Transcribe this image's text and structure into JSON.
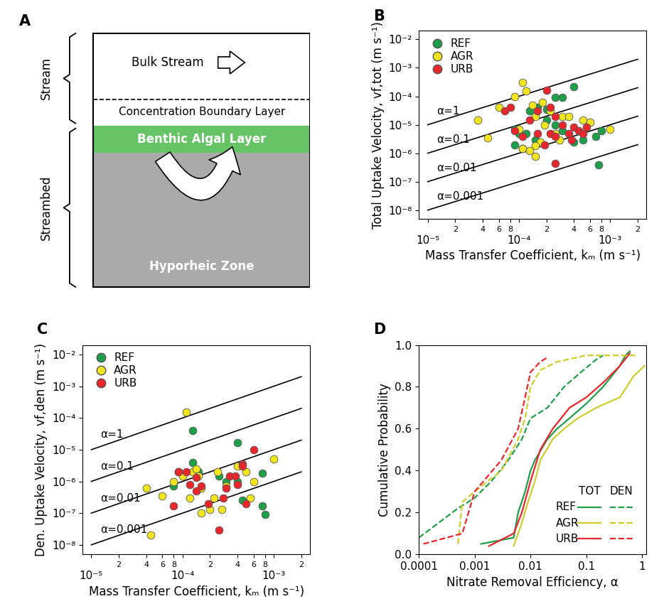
{
  "diagram": {
    "title": "A",
    "brackets": [
      {
        "label": "Stream"
      },
      {
        "label": "Streambed"
      }
    ],
    "layers": [
      {
        "label": "Bulk Stream"
      },
      {
        "label": "Concentration Boundary Layer"
      },
      {
        "label": "Benthic Algal Layer"
      },
      {
        "label": "Hyporheic Zone"
      }
    ]
  },
  "chart_data": [
    {
      "type": "scatter",
      "title": "B",
      "x_label": "Mass Transfer Coefficient, kₘ (m s⁻¹)",
      "y_label": "Total Uptake Velocity, vf,tot (m s⁻¹)",
      "log": true,
      "legend": "upper left",
      "xlim": [
        8e-06,
        0.0025
      ],
      "ylim": [
        5e-09,
        0.02
      ],
      "xticks": [
        {
          "value": 1e-05,
          "label": "10⁻⁵"
        },
        {
          "value": 2e-05,
          "label": "2"
        },
        {
          "value": 4e-05,
          "label": "4"
        },
        {
          "value": 6e-05,
          "label": "6"
        },
        {
          "value": 8e-05,
          "label": "8"
        },
        {
          "value": 0.0001,
          "label": "10⁻⁴"
        },
        {
          "value": 0.0002,
          "label": "2"
        },
        {
          "value": 0.0004,
          "label": "4"
        },
        {
          "value": 0.0006,
          "label": "6"
        },
        {
          "value": 0.0008,
          "label": "8"
        },
        {
          "value": 0.001,
          "label": "10⁻³"
        },
        {
          "value": 0.002,
          "label": "2"
        }
      ],
      "yticks": [
        {
          "value": 1e-08,
          "label": "10⁻⁸"
        },
        {
          "value": 1e-07,
          "label": "10⁻⁷"
        },
        {
          "value": 1e-06,
          "label": "10⁻⁶"
        },
        {
          "value": 1e-05,
          "label": "10⁻⁵"
        },
        {
          "value": 0.0001,
          "label": "10⁻⁴"
        },
        {
          "value": 0.001,
          "label": "10⁻³"
        },
        {
          "value": 0.01,
          "label": "10⁻²"
        }
      ],
      "reference_lines": [
        {
          "name": "α=1",
          "color": "#000000",
          "x": [
            1e-05,
            0.002
          ],
          "values": [
            1e-05,
            0.002
          ]
        },
        {
          "name": "α=0.1",
          "color": "#000000",
          "x": [
            1e-05,
            0.002
          ],
          "values": [
            1e-06,
            0.0002
          ]
        },
        {
          "name": "α=0.01",
          "color": "#000000",
          "x": [
            1e-05,
            0.002
          ],
          "values": [
            1e-07,
            2e-05
          ]
        },
        {
          "name": "α=0.001",
          "color": "#000000",
          "x": [
            1e-05,
            0.002
          ],
          "values": [
            1e-08,
            2e-06
          ]
        }
      ],
      "series": [
        {
          "name": "REF",
          "color": "#1e9e48",
          "marker": "circle",
          "x": [
            0.0004,
            0.0003,
            0.00025,
            0.0002,
            0.00016,
            0.00013,
            0.00012,
            9e-05,
            0.0001,
            9e-05,
            0.00011,
            0.0002,
            0.0003,
            0.0004,
            0.0005,
            0.0007,
            0.0008,
            0.00075,
            0.00025,
            0.00015
          ],
          "values": [
            0.00022,
            9e-05,
            9e-05,
            3.5e-05,
            4e-05,
            3e-05,
            5e-06,
            7e-06,
            5e-06,
            2e-06,
            1.5e-06,
            1.5e-05,
            6e-06,
            2.5e-06,
            3e-06,
            4e-06,
            6e-06,
            4e-07,
            1e-05,
            3e-06
          ]
        },
        {
          "name": "AGR",
          "color": "#f2e51d",
          "marker": "circle",
          "x": [
            0.00011,
            0.00012,
            9e-05,
            3.5e-05,
            6e-05,
            4.5e-05,
            0.00014,
            0.00015,
            0.00018,
            0.00022,
            0.0001,
            0.00011,
            0.00013,
            0.00015,
            0.00017,
            0.00019,
            0.00025,
            0.0003,
            0.00035,
            0.0005,
            0.0006,
            0.001,
            0.00028,
            0.00015
          ],
          "values": [
            0.0003,
            0.00015,
            0.0001,
            1.5e-05,
            4e-05,
            3.5e-06,
            5e-05,
            2e-05,
            6e-05,
            3e-05,
            7e-06,
            1.5e-06,
            1.2e-06,
            8e-07,
            2.5e-06,
            1e-05,
            5e-06,
            2e-05,
            2e-05,
            1.5e-05,
            1.2e-05,
            7e-06,
            3e-06,
            1.8e-06
          ]
        },
        {
          "name": "URB",
          "color": "#e8262b",
          "marker": "circle",
          "x": [
            7e-05,
            8e-05,
            0.0002,
            0.00016,
            0.00022,
            0.00025,
            0.00013,
            0.00016,
            0.00022,
            0.00025,
            0.00011,
            9e-05,
            0.00019,
            0.0003,
            0.00035,
            0.0004,
            0.00045,
            0.0005,
            0.00055,
            0.00025,
            0.00038
          ],
          "values": [
            3e-05,
            4e-05,
            0.00016,
            3e-05,
            4e-05,
            2e-05,
            1.5e-05,
            5e-06,
            5e-06,
            4e-06,
            4e-06,
            6e-06,
            2e-06,
            1e-05,
            5e-06,
            8e-06,
            6e-06,
            5e-06,
            8e-06,
            4.5e-07,
            3e-06
          ]
        }
      ]
    },
    {
      "type": "scatter",
      "title": "C",
      "x_label": "Mass Transfer Coefficient, kₘ (m s⁻¹)",
      "y_label": "Den. Uptake Velocity, vf,den (m s⁻¹)",
      "log": true,
      "legend": "upper left",
      "xlim": [
        8e-06,
        0.0025
      ],
      "ylim": [
        5e-09,
        0.02
      ],
      "xticks": [
        {
          "value": 1e-05,
          "label": "10⁻⁵"
        },
        {
          "value": 2e-05,
          "label": "2"
        },
        {
          "value": 4e-05,
          "label": "4"
        },
        {
          "value": 6e-05,
          "label": "6"
        },
        {
          "value": 8e-05,
          "label": "8"
        },
        {
          "value": 0.0001,
          "label": "10⁻⁴"
        },
        {
          "value": 0.0002,
          "label": "2"
        },
        {
          "value": 0.0004,
          "label": "4"
        },
        {
          "value": 0.0006,
          "label": "6"
        },
        {
          "value": 0.0008,
          "label": "8"
        },
        {
          "value": 0.001,
          "label": "10⁻³"
        },
        {
          "value": 0.002,
          "label": "2"
        }
      ],
      "yticks": [
        {
          "value": 1e-08,
          "label": "10⁻⁸"
        },
        {
          "value": 1e-07,
          "label": "10⁻⁷"
        },
        {
          "value": 1e-06,
          "label": "10⁻⁶"
        },
        {
          "value": 1e-05,
          "label": "10⁻⁵"
        },
        {
          "value": 0.0001,
          "label": "10⁻⁴"
        },
        {
          "value": 0.001,
          "label": "10⁻³"
        },
        {
          "value": 0.01,
          "label": "10⁻²"
        }
      ],
      "reference_lines": [
        {
          "name": "α=1",
          "color": "#000000",
          "x": [
            1e-05,
            0.002
          ],
          "values": [
            1e-05,
            0.002
          ]
        },
        {
          "name": "α=0.1",
          "color": "#000000",
          "x": [
            1e-05,
            0.002
          ],
          "values": [
            1e-06,
            0.0002
          ]
        },
        {
          "name": "α=0.01",
          "color": "#000000",
          "x": [
            1e-05,
            0.002
          ],
          "values": [
            1e-07,
            2e-05
          ]
        },
        {
          "name": "α=0.001",
          "color": "#000000",
          "x": [
            1e-05,
            0.002
          ],
          "values": [
            1e-08,
            2e-06
          ]
        }
      ],
      "series": [
        {
          "name": "REF",
          "color": "#1e9e48",
          "marker": "circle",
          "x": [
            0.00013,
            0.0004,
            9e-05,
            8e-05,
            0.00013,
            0.00015,
            0.00025,
            0.0003,
            0.00045,
            0.00075,
            0.00075,
            0.0008,
            0.0004
          ],
          "values": [
            4e-05,
            1.7e-05,
            2e-06,
            7e-07,
            4e-06,
            2e-06,
            1.5e-06,
            1e-06,
            2.5e-07,
            1.8e-06,
            1.7e-07,
            9e-08,
            1e-06
          ]
        },
        {
          "name": "AGR",
          "color": "#f2e51d",
          "marker": "circle",
          "x": [
            0.00011,
            4e-05,
            4.5e-05,
            6e-05,
            8e-05,
            0.0001,
            0.00012,
            0.00013,
            0.00014,
            0.00016,
            0.00015,
            0.0002,
            0.00022,
            0.00024,
            0.00027,
            0.0003,
            0.0004,
            0.0005,
            0.00055,
            0.0006,
            0.001,
            0.00016
          ],
          "values": [
            0.00015,
            6e-07,
            2e-08,
            3.5e-07,
            1e-06,
            1.5e-06,
            3e-07,
            2e-06,
            2.5e-06,
            1e-07,
            1.5e-06,
            1.3e-07,
            3e-07,
            2e-06,
            1.3e-07,
            7e-07,
            3e-06,
            2e-06,
            3e-07,
            1e-06,
            5e-06,
            6e-07
          ]
        },
        {
          "name": "URB",
          "color": "#e8262b",
          "marker": "circle",
          "x": [
            8e-05,
            9e-05,
            0.00011,
            0.00012,
            0.00014,
            0.00016,
            0.00014,
            0.00019,
            0.00025,
            0.00028,
            0.0003,
            0.00033,
            0.00038,
            0.0004,
            0.00045,
            0.00045,
            0.0006,
            0.0005
          ],
          "values": [
            1.7e-07,
            2e-06,
            2e-06,
            8e-07,
            1.3e-06,
            7e-07,
            5e-07,
            2e-07,
            3e-08,
            3e-07,
            6e-07,
            1.5e-06,
            1.5e-06,
            8e-07,
            3.5e-06,
            3e-06,
            1e-05,
            2e-07
          ]
        }
      ]
    },
    {
      "type": "line",
      "title": "D",
      "x_label": "Nitrate Removal Efficiency, α",
      "y_label": "Cumulative Probability",
      "log": "x",
      "legend": "lower right",
      "xlim": [
        0.0001,
        1.2
      ],
      "ylim": [
        0.0,
        1.0
      ],
      "xticks": [
        0.0001,
        0.001,
        0.01,
        0.1,
        1
      ],
      "yticks": [
        0.0,
        0.2,
        0.4,
        0.6,
        0.8,
        1.0
      ],
      "series": [
        {
          "name": "REF",
          "group": "TOT",
          "color": "#1e9e48",
          "line_style": "solid",
          "x": [
            0.0013,
            0.005,
            0.006,
            0.008,
            0.01,
            0.012,
            0.02,
            0.03,
            0.05,
            0.1,
            0.2,
            0.4,
            0.5,
            0.6
          ],
          "values": [
            0.05,
            0.08,
            0.2,
            0.3,
            0.4,
            0.45,
            0.55,
            0.6,
            0.65,
            0.72,
            0.8,
            0.9,
            0.95,
            0.97
          ]
        },
        {
          "name": "AGR",
          "group": "TOT",
          "color": "#cfcc2c",
          "line_style": "solid",
          "x": [
            0.005,
            0.007,
            0.009,
            0.012,
            0.015,
            0.025,
            0.04,
            0.07,
            0.15,
            0.4,
            0.7,
            1.1
          ],
          "values": [
            0.04,
            0.15,
            0.25,
            0.35,
            0.45,
            0.55,
            0.6,
            0.65,
            0.7,
            0.75,
            0.85,
            0.9
          ]
        },
        {
          "name": "URB",
          "group": "TOT",
          "color": "#e8262b",
          "line_style": "solid",
          "x": [
            0.0018,
            0.005,
            0.007,
            0.01,
            0.015,
            0.025,
            0.05,
            0.1,
            0.2,
            0.4,
            0.6
          ],
          "values": [
            0.04,
            0.1,
            0.2,
            0.35,
            0.5,
            0.6,
            0.7,
            0.75,
            0.82,
            0.9,
            0.96
          ]
        },
        {
          "name": "REF",
          "group": "DEN",
          "color": "#1e9e48",
          "line_style": "dashed",
          "x": [
            0.0001,
            0.0005,
            0.001,
            0.002,
            0.004,
            0.007,
            0.01,
            0.02,
            0.04,
            0.08,
            0.15,
            0.2
          ],
          "values": [
            0.08,
            0.22,
            0.27,
            0.35,
            0.45,
            0.55,
            0.65,
            0.7,
            0.8,
            0.87,
            0.93,
            0.95
          ]
        },
        {
          "name": "AGR",
          "group": "DEN",
          "color": "#cfcc2c",
          "line_style": "dashed",
          "x": [
            0.0005,
            0.0006,
            0.001,
            0.003,
            0.006,
            0.008,
            0.01,
            0.015,
            0.03,
            0.1,
            0.8
          ],
          "values": [
            0.05,
            0.25,
            0.3,
            0.4,
            0.55,
            0.65,
            0.8,
            0.88,
            0.92,
            0.95,
            0.95
          ]
        },
        {
          "name": "URB",
          "group": "DEN",
          "color": "#e8262b",
          "line_style": "dashed",
          "x": [
            0.00012,
            0.0006,
            0.001,
            0.003,
            0.006,
            0.008,
            0.01,
            0.015,
            0.02
          ],
          "values": [
            0.05,
            0.1,
            0.3,
            0.45,
            0.6,
            0.75,
            0.87,
            0.92,
            0.94
          ]
        }
      ]
    }
  ]
}
